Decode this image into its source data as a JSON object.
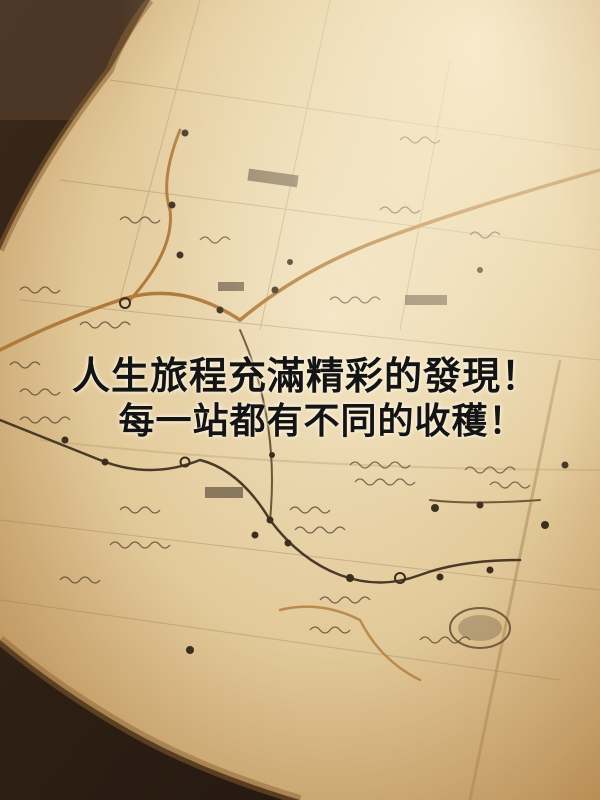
{
  "caption": {
    "line1": "人生旅程充滿精彩的發現！",
    "line2": "每一站都有不同的收穫！"
  },
  "colors": {
    "table": "#2b1d12",
    "paper": "#e4cfa4",
    "paper_edge": "#b88d54",
    "route": "#b07a3a",
    "ink": "#4a3a28",
    "caption_text": "#141414"
  }
}
